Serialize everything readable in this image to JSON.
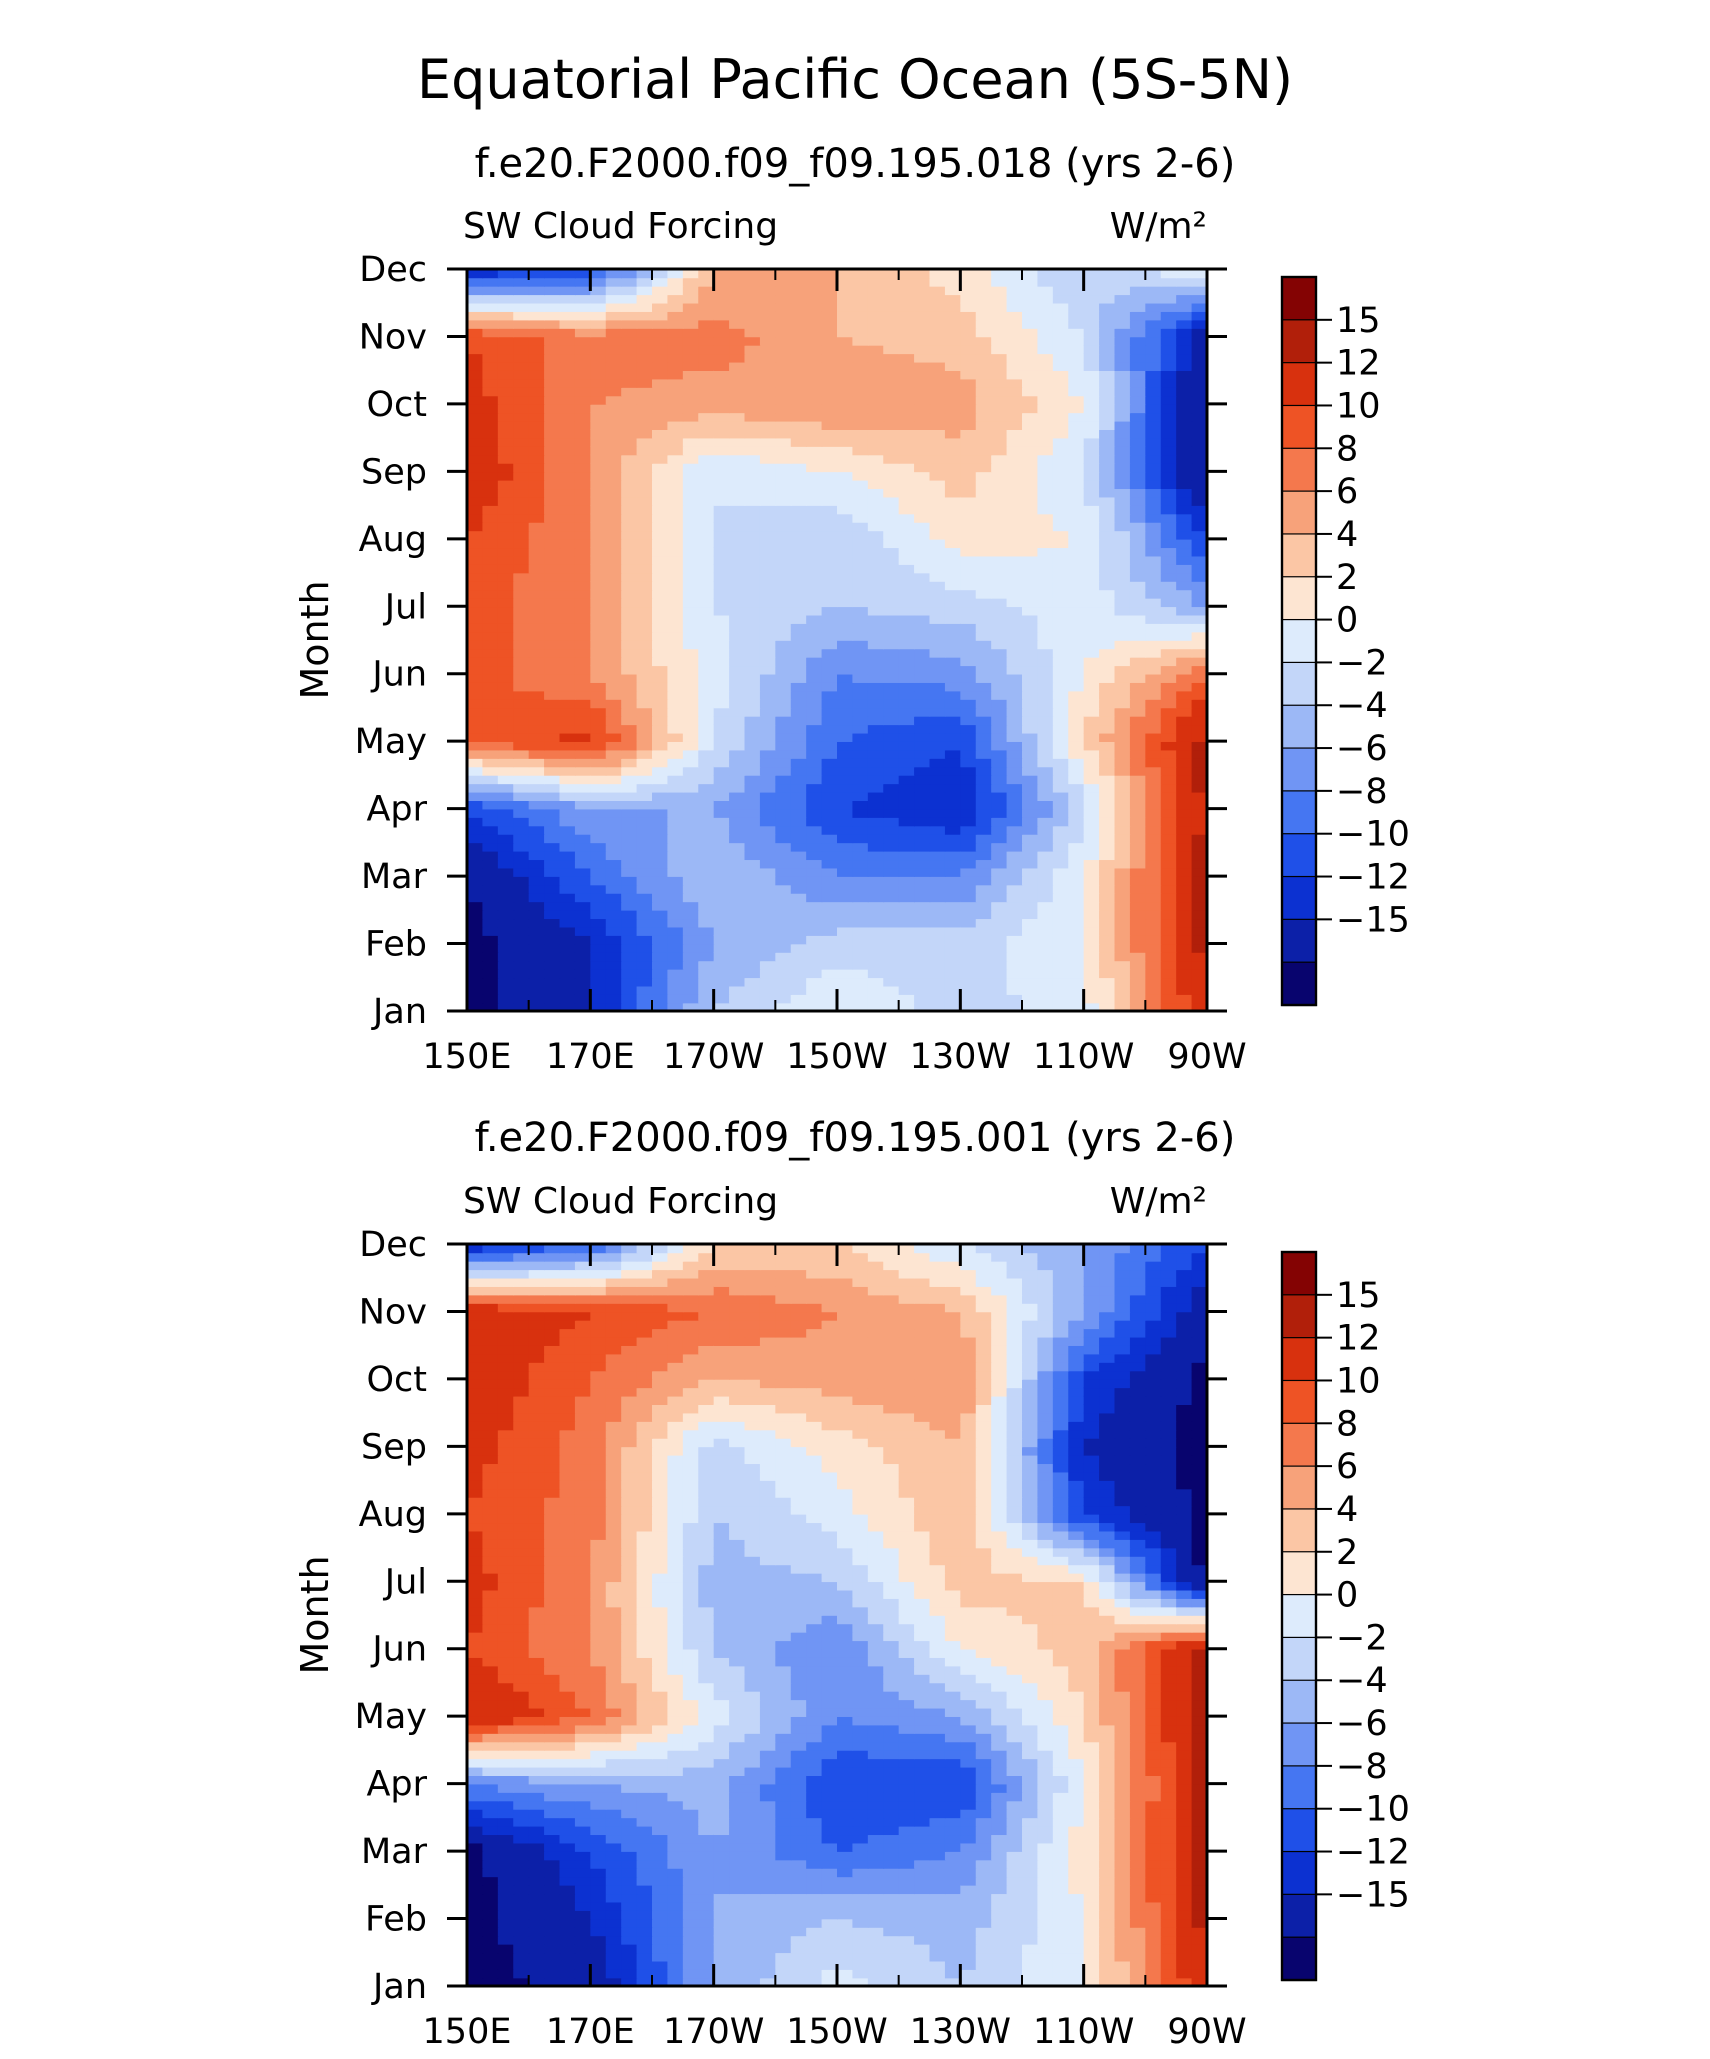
{
  "page_title": "Equatorial Pacific Ocean (5S-5N)",
  "colorbar": {
    "labels": [
      "15",
      "12",
      "10",
      "8",
      "6",
      "4",
      "2",
      "0",
      "-2",
      "-4",
      "-6",
      "-8",
      "-10",
      "-12",
      "-15"
    ],
    "levels": [
      -15,
      -12,
      -10,
      -8,
      -6,
      -4,
      -2,
      0,
      2,
      4,
      6,
      8,
      10,
      12,
      15
    ],
    "colors": [
      "#08046e",
      "#0c20a8",
      "#0c31d1",
      "#1f50e8",
      "#4576f2",
      "#7095f4",
      "#9cb8f6",
      "#c3d6f9",
      "#ddebfc",
      "#fde5d2",
      "#fbc6a5",
      "#f7a27a",
      "#f4784d",
      "#ee5325",
      "#d8310e",
      "#b11f0a",
      "#840303"
    ]
  },
  "x_ticks": [
    "150E",
    "170E",
    "170W",
    "150W",
    "130W",
    "110W",
    "90W"
  ],
  "y_ticks": [
    "Jan",
    "Feb",
    "Mar",
    "Apr",
    "May",
    "Jun",
    "Jul",
    "Aug",
    "Sep",
    "Oct",
    "Nov",
    "Dec"
  ],
  "y_axis_title": "Month",
  "chart_data": [
    {
      "type": "heatmap",
      "title": "f.e20.F2000.f09_f09.195.018 (yrs 2-6)",
      "left_label": "SW Cloud Forcing",
      "right_label": "W/m²",
      "xlabel": "",
      "ylabel": "Month",
      "x": [
        "150E",
        "170E",
        "170W",
        "150W",
        "130W",
        "110W",
        "90W"
      ],
      "y": [
        "Jan",
        "Feb",
        "Mar",
        "Apr",
        "May",
        "Jun",
        "Jul",
        "Aug",
        "Sep",
        "Oct",
        "Nov",
        "Dec"
      ],
      "values": [
        [
          -16,
          -12,
          -2,
          2,
          -1,
          1,
          14
        ],
        [
          -16,
          -12,
          -4,
          -1,
          -1,
          2,
          16
        ],
        [
          -15,
          -8,
          -2,
          -6,
          -6,
          2,
          16
        ],
        [
          -10,
          -4,
          -4,
          -10,
          -12,
          -1,
          16
        ],
        [
          10,
          13,
          0,
          -8,
          -10,
          4,
          16
        ],
        [
          11,
          8,
          1,
          -6,
          -5,
          2,
          10
        ],
        [
          11,
          8,
          0,
          -2,
          -1,
          1,
          -4
        ],
        [
          12,
          8,
          0,
          -2,
          3,
          2,
          -10
        ],
        [
          14,
          8,
          0,
          2,
          5,
          0,
          -16
        ],
        [
          13,
          8,
          7,
          8,
          7,
          2,
          -16
        ],
        [
          12,
          9,
          9,
          6,
          5,
          0,
          -14
        ],
        [
          -12,
          -10,
          6,
          6,
          3,
          -2,
          2
        ]
      ]
    },
    {
      "type": "heatmap",
      "title": "f.e20.F2000.f09_f09.195.001 (yrs 2-6)",
      "left_label": "SW Cloud Forcing",
      "right_label": "W/m²",
      "xlabel": "",
      "ylabel": "Month",
      "x": [
        "150E",
        "170E",
        "170W",
        "150W",
        "130W",
        "110W",
        "90W"
      ],
      "y": [
        "Jan",
        "Feb",
        "Mar",
        "Apr",
        "May",
        "Jun",
        "Jul",
        "Aug",
        "Sep",
        "Oct",
        "Nov",
        "Dec"
      ],
      "values": [
        [
          -16,
          -14,
          -4,
          1,
          -2,
          2,
          14
        ],
        [
          -16,
          -12,
          -4,
          -2,
          -3,
          2,
          16
        ],
        [
          -16,
          -10,
          -4,
          -8,
          -6,
          3,
          16
        ],
        [
          -6,
          -4,
          -3,
          -10,
          -10,
          2,
          16
        ],
        [
          15,
          10,
          1,
          -6,
          -4,
          4,
          16
        ],
        [
          12,
          8,
          -2,
          -6,
          2,
          5,
          16
        ],
        [
          13,
          8,
          -3,
          -2,
          5,
          4,
          -16
        ],
        [
          12,
          9,
          -2,
          1,
          6,
          -10,
          -16
        ],
        [
          13,
          9,
          -1,
          3,
          6,
          -12,
          -16
        ],
        [
          14,
          10,
          6,
          7,
          8,
          -10,
          -16
        ],
        [
          14,
          12,
          10,
          8,
          6,
          -4,
          -14
        ],
        [
          -12,
          -8,
          4,
          4,
          0,
          -4,
          -10
        ]
      ]
    }
  ]
}
